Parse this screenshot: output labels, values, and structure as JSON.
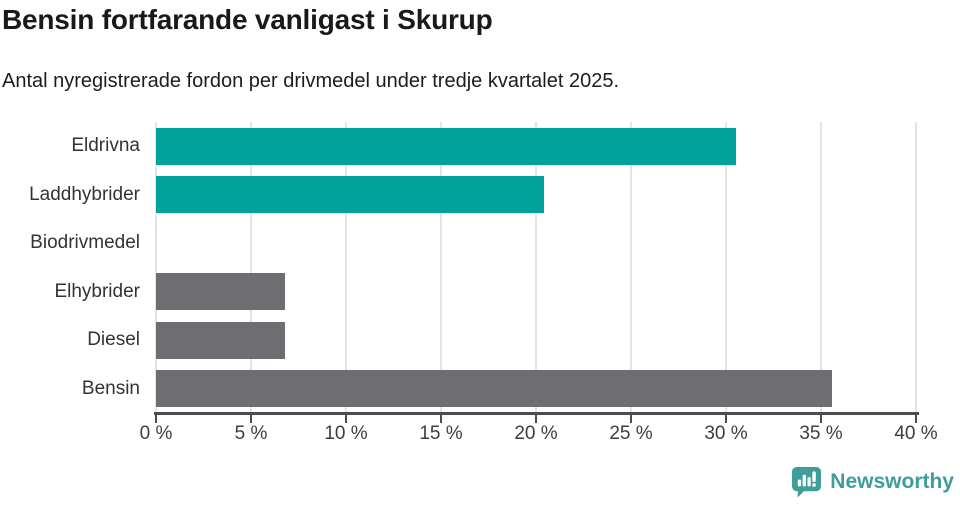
{
  "chart_data": {
    "type": "bar",
    "orientation": "horizontal",
    "title": "Bensin fortfarande vanligast i Skurup",
    "subtitle": "Antal nyregistrerade fordon per drivmedel under tredje kvartalet 2025.",
    "xlabel": "",
    "ylabel": "",
    "categories": [
      "Eldrivna",
      "Laddhybrider",
      "Biodrivmedel",
      "Elhybrider",
      "Diesel",
      "Bensin"
    ],
    "values": [
      30.5,
      20.4,
      0,
      6.8,
      6.8,
      35.6
    ],
    "bar_colors": [
      "#00a39a",
      "#00a39a",
      "#00a39a",
      "#6e6e72",
      "#6e6e72",
      "#6e6e72"
    ],
    "xlim": [
      0,
      40
    ],
    "x_ticks": [
      0,
      5,
      10,
      15,
      20,
      25,
      30,
      35,
      40
    ],
    "x_tick_labels": [
      "0 %",
      "5 %",
      "10 %",
      "15 %",
      "20 %",
      "25 %",
      "30 %",
      "35 %",
      "40 %"
    ],
    "grid": true,
    "legend": "none",
    "value_labels": "none"
  },
  "branding": {
    "logo_text": "Newsworthy",
    "logo_icon": "bar-chart-speech-bubble-icon",
    "logo_color": "#3f9e99"
  },
  "colors": {
    "accent_teal": "#00a39a",
    "neutral_gray": "#6e6e72",
    "gridline": "#e4e4e4",
    "axis": "#4b4b50",
    "title_text": "#191919",
    "label_text": "#333333"
  }
}
